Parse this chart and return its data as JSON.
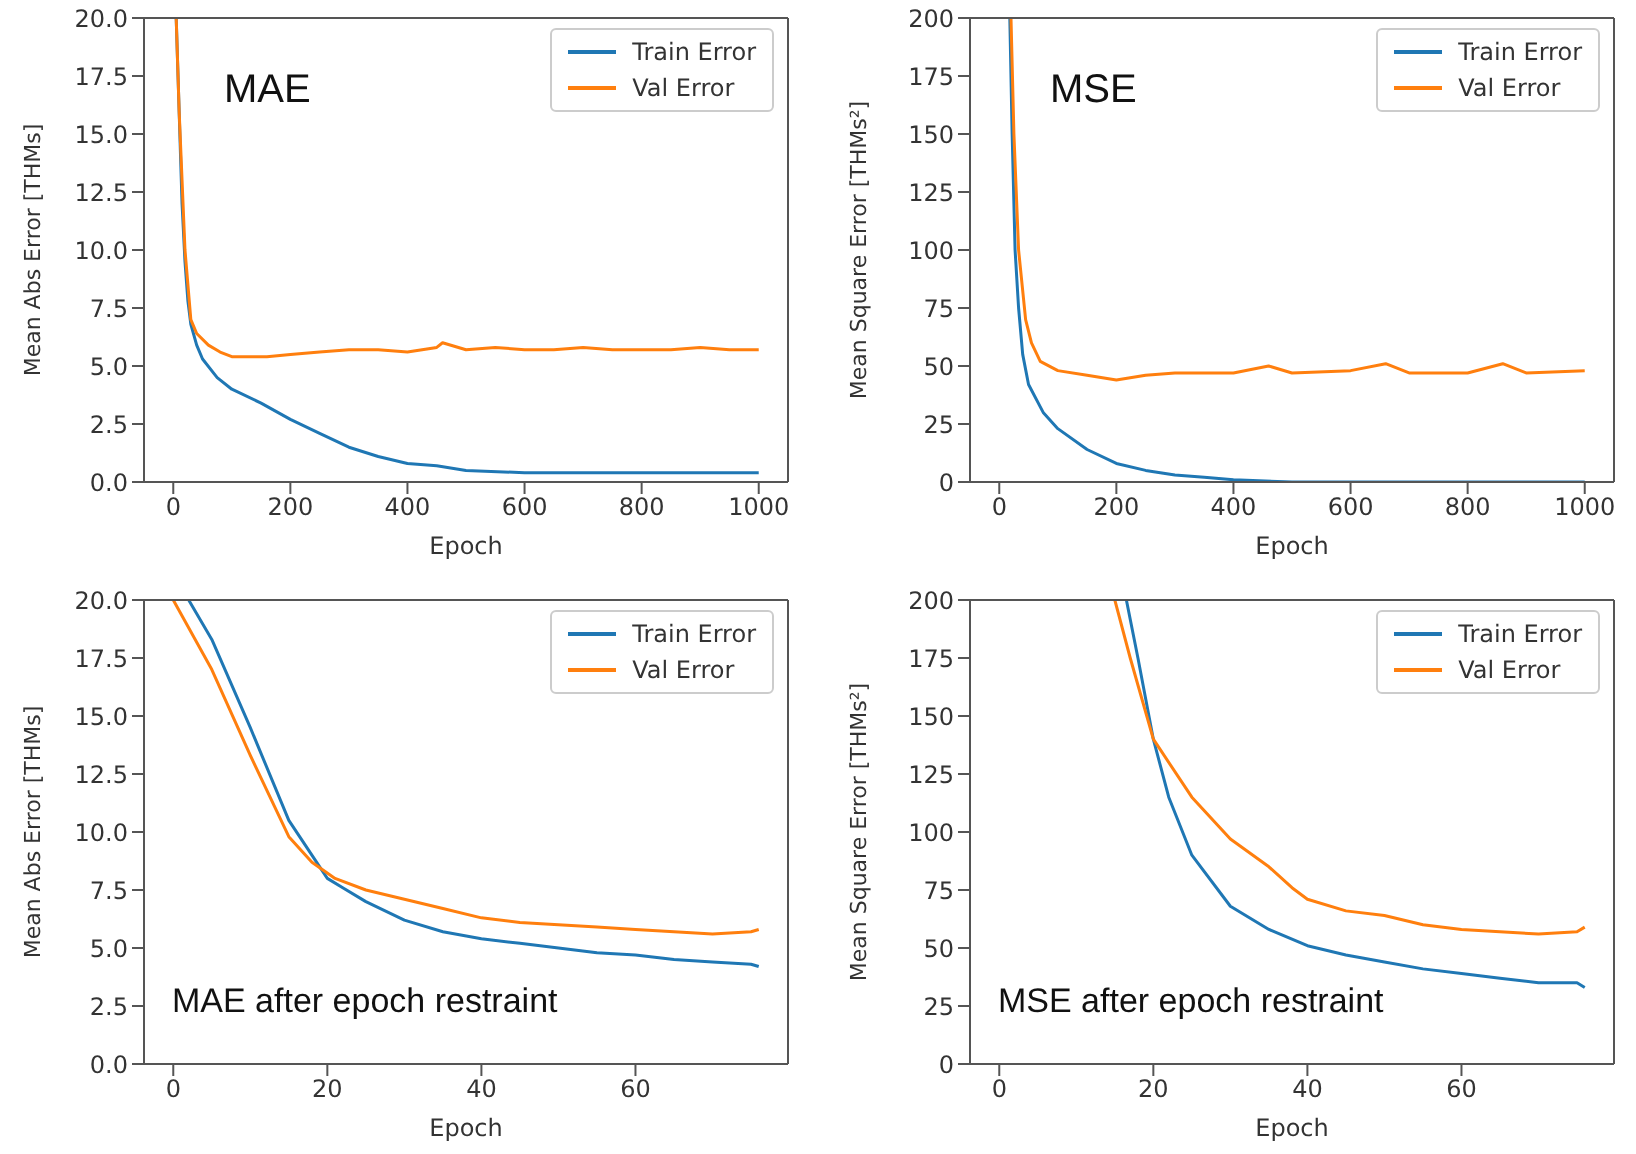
{
  "chart_data": [
    {
      "type": "line",
      "ylabel": "Mean Abs Error [THMs]",
      "xlabel": "Epoch",
      "annotations": [
        "MAE"
      ],
      "xlim": [
        -50,
        1050
      ],
      "xticks": [
        0,
        200,
        400,
        600,
        800,
        1000
      ],
      "ylim": [
        0,
        20
      ],
      "yticks": [
        {
          "value": 0,
          "label": "0.0"
        },
        {
          "value": 2.5,
          "label": "2.5"
        },
        {
          "value": 5,
          "label": "5.0"
        },
        {
          "value": 7.5,
          "label": "7.5"
        },
        {
          "value": 10,
          "label": "10.0"
        },
        {
          "value": 12.5,
          "label": "12.5"
        },
        {
          "value": 15,
          "label": "15.0"
        },
        {
          "value": 17.5,
          "label": "17.5"
        },
        {
          "value": 20,
          "label": "20.0"
        }
      ],
      "legend": "top right",
      "grid": false,
      "series": [
        {
          "name": "Train Error",
          "color": "#1f77b4",
          "x": [
            5,
            15,
            20,
            25,
            30,
            40,
            50,
            75,
            100,
            150,
            200,
            250,
            300,
            350,
            400,
            450,
            500,
            600,
            700,
            800,
            900,
            1000
          ],
          "values": [
            20,
            12,
            9.5,
            7.8,
            6.8,
            5.9,
            5.3,
            4.5,
            4.0,
            3.4,
            2.7,
            2.1,
            1.5,
            1.1,
            0.8,
            0.7,
            0.5,
            0.4,
            0.4,
            0.4,
            0.4,
            0.4
          ]
        },
        {
          "name": "Val Error",
          "color": "#ff7f0e",
          "x": [
            5,
            10,
            20,
            30,
            40,
            60,
            80,
            100,
            130,
            160,
            200,
            250,
            300,
            350,
            400,
            450,
            460,
            500,
            550,
            600,
            650,
            700,
            750,
            800,
            850,
            900,
            950,
            1000
          ],
          "values": [
            20,
            16,
            10,
            7.0,
            6.4,
            5.9,
            5.6,
            5.4,
            5.4,
            5.4,
            5.5,
            5.6,
            5.7,
            5.7,
            5.6,
            5.8,
            6.0,
            5.7,
            5.8,
            5.7,
            5.7,
            5.8,
            5.7,
            5.7,
            5.7,
            5.8,
            5.7,
            5.7
          ]
        }
      ]
    },
    {
      "type": "line",
      "ylabel": "Mean Square Error [THMs²]",
      "xlabel": "Epoch",
      "annotations": [
        "MSE"
      ],
      "xlim": [
        -50,
        1050
      ],
      "xticks": [
        0,
        200,
        400,
        600,
        800,
        1000
      ],
      "ylim": [
        0,
        200
      ],
      "yticks": [
        0,
        25,
        50,
        75,
        100,
        125,
        150,
        175,
        200
      ],
      "legend": "top right",
      "grid": false,
      "series": [
        {
          "name": "Train Error",
          "color": "#1f77b4",
          "x": [
            18,
            22,
            27,
            33,
            40,
            50,
            75,
            100,
            150,
            200,
            250,
            300,
            350,
            400,
            500,
            600,
            800,
            1000
          ],
          "values": [
            200,
            150,
            100,
            75,
            55,
            42,
            30,
            23,
            14,
            8,
            5,
            3,
            2,
            1,
            0,
            0,
            0,
            0
          ]
        },
        {
          "name": "Val Error",
          "color": "#ff7f0e",
          "x": [
            20,
            25,
            33,
            45,
            55,
            70,
            100,
            150,
            200,
            250,
            300,
            400,
            460,
            500,
            600,
            660,
            700,
            800,
            860,
            900,
            1000
          ],
          "values": [
            200,
            150,
            100,
            70,
            60,
            52,
            48,
            46,
            44,
            46,
            47,
            47,
            50,
            47,
            48,
            51,
            47,
            47,
            51,
            47,
            48
          ]
        }
      ]
    },
    {
      "type": "line",
      "ylabel": "Mean Abs Error [THMs]",
      "xlabel": "Epoch",
      "annotations": [
        "MAE after epoch restraint"
      ],
      "xlim": [
        -3.8,
        79.8
      ],
      "xticks": [
        0,
        20,
        40,
        60
      ],
      "ylim": [
        0,
        20
      ],
      "yticks": [
        {
          "value": 0,
          "label": "0.0"
        },
        {
          "value": 2.5,
          "label": "2.5"
        },
        {
          "value": 5,
          "label": "5.0"
        },
        {
          "value": 7.5,
          "label": "7.5"
        },
        {
          "value": 10,
          "label": "10.0"
        },
        {
          "value": 12.5,
          "label": "12.5"
        },
        {
          "value": 15,
          "label": "15.0"
        },
        {
          "value": 17.5,
          "label": "17.5"
        },
        {
          "value": 20,
          "label": "20.0"
        }
      ],
      "legend": "top right",
      "grid": false,
      "series": [
        {
          "name": "Train Error",
          "color": "#1f77b4",
          "x": [
            2,
            5,
            10,
            15,
            20,
            22,
            25,
            30,
            35,
            40,
            45,
            50,
            55,
            60,
            65,
            70,
            75,
            76
          ],
          "values": [
            20,
            18.3,
            14.5,
            10.5,
            8.0,
            7.6,
            7.0,
            6.2,
            5.7,
            5.4,
            5.2,
            5.0,
            4.8,
            4.7,
            4.5,
            4.4,
            4.3,
            4.2
          ]
        },
        {
          "name": "Val Error",
          "color": "#ff7f0e",
          "x": [
            0,
            5,
            10,
            15,
            18,
            21,
            25,
            30,
            35,
            40,
            45,
            50,
            55,
            60,
            65,
            70,
            75,
            76
          ],
          "values": [
            20,
            17,
            13.3,
            9.8,
            8.7,
            8.0,
            7.5,
            7.1,
            6.7,
            6.3,
            6.1,
            6.0,
            5.9,
            5.8,
            5.7,
            5.6,
            5.7,
            5.8
          ]
        }
      ]
    },
    {
      "type": "line",
      "ylabel": "Mean Square Error [THMs²]",
      "xlabel": "Epoch",
      "annotations": [
        "MSE after epoch restraint"
      ],
      "xlim": [
        -3.8,
        79.8
      ],
      "xticks": [
        0,
        20,
        40,
        60
      ],
      "ylim": [
        0,
        200
      ],
      "yticks": [
        0,
        25,
        50,
        75,
        100,
        125,
        150,
        175,
        200
      ],
      "legend": "top right",
      "grid": false,
      "series": [
        {
          "name": "Train Error",
          "color": "#1f77b4",
          "x": [
            16.5,
            18,
            20,
            22,
            25,
            30,
            35,
            40,
            45,
            50,
            55,
            60,
            65,
            70,
            75,
            76
          ],
          "values": [
            200,
            175,
            140,
            115,
            90,
            68,
            58,
            51,
            47,
            44,
            41,
            39,
            37,
            35,
            35,
            33
          ]
        },
        {
          "name": "Val Error",
          "color": "#ff7f0e",
          "x": [
            15,
            17,
            20,
            25,
            30,
            35,
            38,
            40,
            45,
            50,
            55,
            60,
            65,
            70,
            75,
            76
          ],
          "values": [
            200,
            175,
            140,
            115,
            97,
            85,
            76,
            71,
            66,
            64,
            60,
            58,
            57,
            56,
            57,
            59
          ]
        }
      ]
    }
  ]
}
